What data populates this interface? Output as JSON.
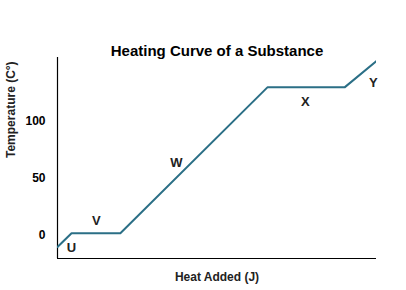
{
  "chart_data": {
    "type": "line",
    "title": "Heating Curve of a Substance",
    "x_label": "Heat Added (J)",
    "y_label": "Temperature (C°)",
    "x": [
      0,
      4.4,
      19.7,
      65.8,
      90,
      100
    ],
    "values": [
      -10,
      2,
      2,
      129,
      129,
      152
    ],
    "color": "#2b6f86",
    "xlim": [
      0,
      100
    ],
    "ylim": [
      -20,
      155
    ],
    "yticks": [
      0,
      50,
      100
    ],
    "tick_labels": "y",
    "grid": false,
    "annotations": [
      {
        "text": "U",
        "x": 4.4,
        "y": -11
      },
      {
        "text": "V",
        "x": 12.2,
        "y": 13
      },
      {
        "text": "W",
        "x": 37.3,
        "y": 63
      },
      {
        "text": "X",
        "x": 77.7,
        "y": 116
      },
      {
        "text": "Y",
        "x": 99,
        "y": 133
      }
    ]
  }
}
